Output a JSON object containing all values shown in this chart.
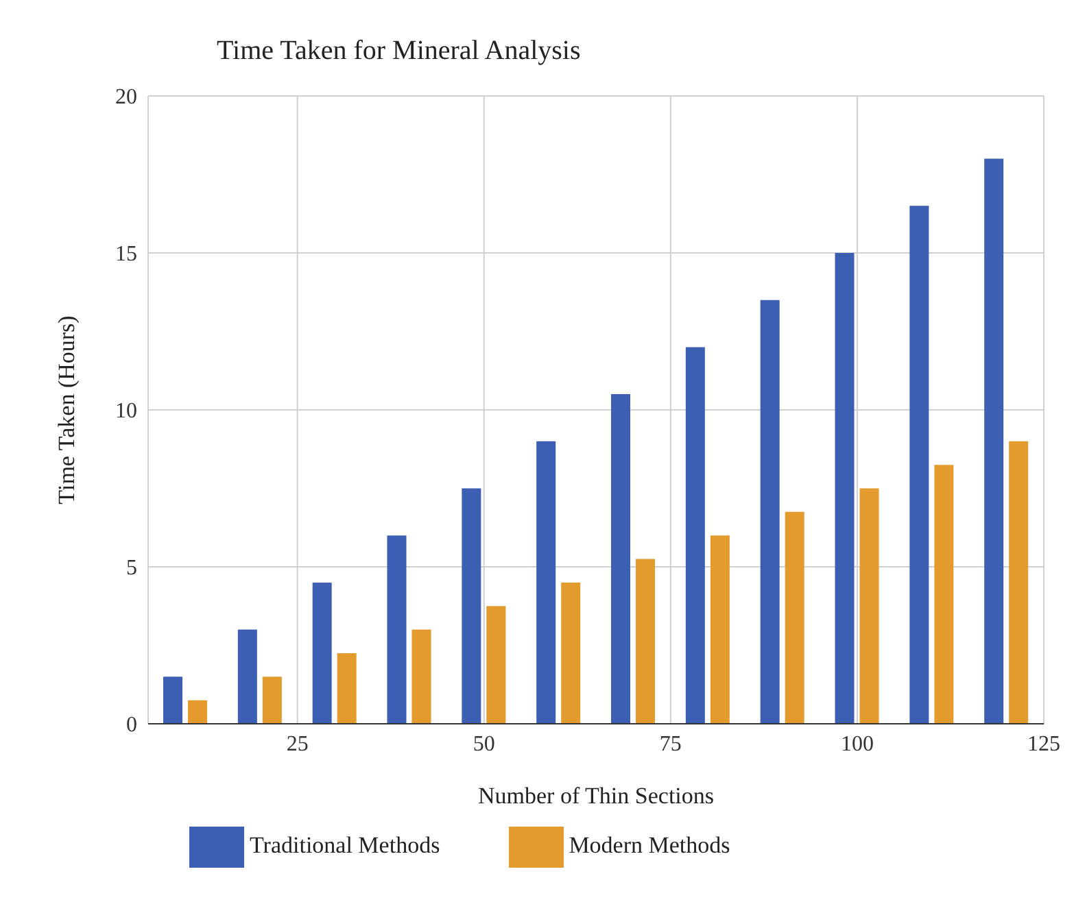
{
  "chart_data": {
    "type": "bar",
    "title": "Time Taken for Mineral Analysis",
    "xlabel": "Number of Thin Sections",
    "ylabel": "Time Taken (Hours)",
    "x": [
      10,
      20,
      30,
      40,
      50,
      60,
      70,
      80,
      90,
      100,
      110,
      120
    ],
    "series": [
      {
        "name": "Traditional Methods",
        "color": "#3c5fb4",
        "values": [
          1.5,
          3,
          4.5,
          6,
          7.5,
          9,
          10.5,
          12,
          13.5,
          15,
          16.5,
          18
        ]
      },
      {
        "name": "Modern Methods",
        "color": "#e39b2d",
        "values": [
          0.75,
          1.5,
          2.25,
          3,
          3.75,
          4.5,
          5.25,
          6,
          6.75,
          7.5,
          8.25,
          9
        ]
      }
    ],
    "xlim": [
      5,
      125
    ],
    "xticks": [
      25,
      50,
      75,
      100,
      125
    ],
    "ylim": [
      0,
      20
    ],
    "yticks": [
      0,
      5,
      10,
      15,
      20
    ],
    "grid": true,
    "legend": "bottom"
  }
}
